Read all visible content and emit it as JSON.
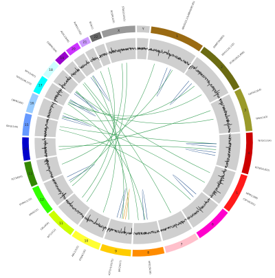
{
  "chromosomes": [
    {
      "id": "chr1",
      "label": "1",
      "color": "#9a6a12",
      "size": 249
    },
    {
      "id": "chr2",
      "label": "2",
      "color": "#6b6b12",
      "size": 243
    },
    {
      "id": "chr3",
      "label": "3",
      "color": "#9a9a2a",
      "size": 198
    },
    {
      "id": "chr4",
      "label": "4",
      "color": "#cc0000",
      "size": 191
    },
    {
      "id": "chr5",
      "label": "5",
      "color": "#ff1a1a",
      "size": 181
    },
    {
      "id": "chr6",
      "label": "6",
      "color": "#ff00cc",
      "size": 171
    },
    {
      "id": "chr7",
      "label": "7",
      "color": "#ffc0cb",
      "size": 159
    },
    {
      "id": "chr8",
      "label": "8",
      "color": "#ff8c00",
      "size": 146
    },
    {
      "id": "chr9",
      "label": "9",
      "color": "#ffcc00",
      "size": 141
    },
    {
      "id": "chr10",
      "label": "10",
      "color": "#ffff33",
      "size": 136
    },
    {
      "id": "chr11",
      "label": "11",
      "color": "#ccff00",
      "size": 135
    },
    {
      "id": "chr12",
      "label": "12",
      "color": "#33ff00",
      "size": 133
    },
    {
      "id": "chr13",
      "label": "13",
      "color": "#338800",
      "size": 115
    },
    {
      "id": "chr14",
      "label": "14",
      "color": "#0000cc",
      "size": 107
    },
    {
      "id": "chr15",
      "label": "15",
      "color": "#6699ff",
      "size": 102
    },
    {
      "id": "chr16",
      "label": "16",
      "color": "#99ccff",
      "size": 90
    },
    {
      "id": "chr17",
      "label": "17",
      "color": "#00ffff",
      "size": 81
    },
    {
      "id": "chr18",
      "label": "18",
      "color": "#ccffff",
      "size": 78
    },
    {
      "id": "chr19",
      "label": "19",
      "color": "#9900cc",
      "size": 59
    },
    {
      "id": "chr20",
      "label": "20",
      "color": "#cc33ff",
      "size": 63
    },
    {
      "id": "chr21",
      "label": "21",
      "color": "#cc99ff",
      "size": 48
    },
    {
      "id": "chr22",
      "label": "22",
      "color": "#666666",
      "size": 51
    },
    {
      "id": "chrX",
      "label": "X",
      "color": "#999999",
      "size": 155
    },
    {
      "id": "chrY",
      "label": "Y",
      "color": "#cccccc",
      "size": 59
    }
  ],
  "gene_labels": [
    {
      "chrom": "chr1",
      "pos": 0.55,
      "text": "NRAS(22,23)/NRAS(85,85)"
    },
    {
      "chrom": "chr2",
      "pos": 0.15,
      "text": "DNMT3A(882)"
    },
    {
      "chrom": "chr2",
      "pos": 0.35,
      "text": "IDH1(132,132)"
    },
    {
      "chrom": "chr2",
      "pos": 0.55,
      "text": "SF3B1(625,666)"
    },
    {
      "chrom": "chr3",
      "pos": 0.2,
      "text": "GATA2(354)"
    },
    {
      "chrom": "chr3",
      "pos": 0.75,
      "text": "TP63(163)"
    },
    {
      "chrom": "chr4",
      "pos": 0.2,
      "text": "TET2(1314)"
    },
    {
      "chrom": "chr4",
      "pos": 0.8,
      "text": "KIT(816,822)"
    },
    {
      "chrom": "chr5",
      "pos": 0.4,
      "text": "NPM1(288)"
    },
    {
      "chrom": "chr5",
      "pos": 0.55,
      "text": "CSF1R(301)"
    },
    {
      "chrom": "chr8",
      "pos": 0.5,
      "text": "MYC(58,58)"
    },
    {
      "chrom": "chr9",
      "pos": 0.3,
      "text": "JAK2(617)"
    },
    {
      "chrom": "chr9",
      "pos": 0.55,
      "text": "NOTCH1(1575)"
    },
    {
      "chrom": "chr10",
      "pos": 0.4,
      "text": "PTEN(130)"
    },
    {
      "chrom": "chr10",
      "pos": 0.65,
      "text": "ABL1(315)"
    },
    {
      "chrom": "chr11",
      "pos": 0.5,
      "text": "WT1(312)"
    },
    {
      "chrom": "chr11",
      "pos": 0.8,
      "text": "CBL(404)"
    },
    {
      "chrom": "chr12",
      "pos": 0.3,
      "text": "KRAS(12)"
    },
    {
      "chrom": "chr12",
      "pos": 0.7,
      "text": "PTPN11(72)"
    },
    {
      "chrom": "chr13",
      "pos": 0.5,
      "text": "FLT3(835)"
    },
    {
      "chrom": "chr15",
      "pos": 0.35,
      "text": "IDH2(140)"
    },
    {
      "chrom": "chr16",
      "pos": 0.35,
      "text": "CBFB(166)"
    },
    {
      "chrom": "chr17",
      "pos": 0.3,
      "text": "TP53(248,273)"
    },
    {
      "chrom": "chr17",
      "pos": 0.75,
      "text": "NF1(1467)"
    },
    {
      "chrom": "chr19",
      "pos": 0.5,
      "text": "CEBPA(304)"
    },
    {
      "chrom": "chr20",
      "pos": 0.5,
      "text": "ASXL1(646)"
    },
    {
      "chrom": "chr21",
      "pos": 0.5,
      "text": "RUNX1(162)"
    },
    {
      "chrom": "chr22",
      "pos": 0.5,
      "text": "BCR(1)"
    },
    {
      "chrom": "chrX",
      "pos": 0.4,
      "text": "BCOR(425)"
    },
    {
      "chrom": "chrX",
      "pos": 0.7,
      "text": "STAG2(1055)"
    }
  ],
  "links": [
    {
      "a": "chr1",
      "pa": 0.2,
      "b": "chr12",
      "pb": 0.5,
      "color": "#2e9a4e"
    },
    {
      "a": "chr2",
      "pa": 0.4,
      "b": "chr16",
      "pb": 0.3,
      "color": "#2e9a4e"
    },
    {
      "a": "chr3",
      "pa": 0.5,
      "b": "chr17",
      "pb": 0.6,
      "color": "#2e9a4e"
    },
    {
      "a": "chr4",
      "pa": 0.5,
      "b": "chr14",
      "pb": 0.5,
      "color": "#2e9a4e"
    },
    {
      "a": "chr5",
      "pa": 0.3,
      "b": "chr18",
      "pb": 0.4,
      "color": "#2e9a4e"
    },
    {
      "a": "chr6",
      "pa": 0.5,
      "b": "chr15",
      "pb": 0.5,
      "color": "#2e9a4e"
    },
    {
      "a": "chr7",
      "pa": 0.4,
      "b": "chr19",
      "pb": 0.5,
      "color": "#2e9a4e"
    },
    {
      "a": "chr8",
      "pa": 0.5,
      "b": "chr17",
      "pb": 0.3,
      "color": "#2e9a4e"
    },
    {
      "a": "chr9",
      "pa": 0.5,
      "b": "chr20",
      "pb": 0.5,
      "color": "#2e9a4e"
    },
    {
      "a": "chr10",
      "pa": 0.4,
      "b": "chr21",
      "pb": 0.5,
      "color": "#2e9a4e"
    },
    {
      "a": "chr11",
      "pa": 0.6,
      "b": "chr22",
      "pb": 0.5,
      "color": "#2e9a4e"
    },
    {
      "a": "chr12",
      "pa": 0.3,
      "b": "chrX",
      "pb": 0.4,
      "color": "#2e9a4e"
    },
    {
      "a": "chr13",
      "pa": 0.5,
      "b": "chr1",
      "pb": 0.7,
      "color": "#2e9a4e"
    },
    {
      "a": "chr14",
      "pa": 0.3,
      "b": "chr3",
      "pb": 0.2,
      "color": "#2e9a4e"
    },
    {
      "a": "chr16",
      "pa": 0.6,
      "b": "chr5",
      "pb": 0.7,
      "color": "#2e9a4e"
    },
    {
      "a": "chr17",
      "pa": 0.4,
      "b": "chr2",
      "pb": 0.7,
      "color": "#2e9a4e"
    },
    {
      "a": "chr18",
      "pa": 0.5,
      "b": "chr9",
      "pb": 0.2,
      "color": "#2e9a4e"
    },
    {
      "a": "chr15",
      "pa": 0.7,
      "b": "chr4",
      "pb": 0.3,
      "color": "#2e9a4e"
    },
    {
      "a": "chr19",
      "pa": 0.3,
      "b": "chr8",
      "pb": 0.8,
      "color": "#2e9a4e"
    },
    {
      "a": "chrX",
      "pa": 0.6,
      "b": "chr11",
      "pb": 0.3,
      "color": "#2e9a4e"
    },
    {
      "a": "chr1",
      "pa": 0.55,
      "b": "chr1",
      "pb": 0.65,
      "color": "#1f4e8c"
    },
    {
      "a": "chr2",
      "pa": 0.2,
      "b": "chr2",
      "pb": 0.3,
      "color": "#1f4e8c"
    },
    {
      "a": "chr4",
      "pa": 0.3,
      "b": "chr4",
      "pb": 0.4,
      "color": "#1f4e8c"
    },
    {
      "a": "chr4",
      "pa": 0.6,
      "b": "chr4",
      "pb": 0.7,
      "color": "#1f4e8c"
    },
    {
      "a": "chr6",
      "pa": 0.2,
      "b": "chr6",
      "pb": 0.35,
      "color": "#1f4e8c"
    },
    {
      "a": "chr8",
      "pa": 0.4,
      "b": "chr8",
      "pb": 0.55,
      "color": "#1f4e8c"
    },
    {
      "a": "chr9",
      "pa": 0.6,
      "b": "chr9",
      "pb": 0.75,
      "color": "#1f4e8c"
    },
    {
      "a": "chr12",
      "pa": 0.6,
      "b": "chr12",
      "pb": 0.8,
      "color": "#1f4e8c"
    },
    {
      "a": "chr16",
      "pa": 0.2,
      "b": "chr16",
      "pb": 0.4,
      "color": "#1f4e8c"
    },
    {
      "a": "chr17",
      "pa": 0.5,
      "b": "chr17",
      "pb": 0.7,
      "color": "#1f4e8c"
    },
    {
      "a": "chr18",
      "pa": 0.2,
      "b": "chr18",
      "pb": 0.35,
      "color": "#1f4e8c"
    },
    {
      "a": "chr20",
      "pa": 0.3,
      "b": "chr20",
      "pb": 0.6,
      "color": "#1f4e8c"
    },
    {
      "a": "chr9",
      "pa": 0.35,
      "b": "chr9",
      "pb": 0.45,
      "color": "#d98c00"
    }
  ]
}
